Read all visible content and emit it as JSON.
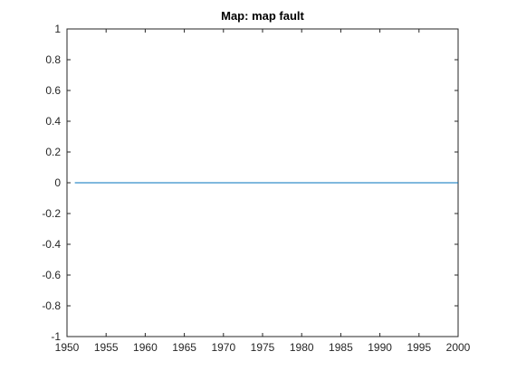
{
  "chart_data": {
    "type": "line",
    "title": "Map: map fault",
    "xlabel": "",
    "ylabel": "",
    "xlim": [
      1950,
      2000
    ],
    "ylim": [
      -1,
      1
    ],
    "x_ticks": [
      1950,
      1955,
      1960,
      1965,
      1970,
      1975,
      1980,
      1985,
      1990,
      1995,
      2000
    ],
    "y_ticks": [
      -1,
      -0.8,
      -0.6,
      -0.4,
      -0.2,
      0,
      0.2,
      0.4,
      0.6,
      0.8,
      1
    ],
    "grid": false,
    "series": [
      {
        "color": "#0072BD",
        "x": [
          1951,
          2000
        ],
        "y": [
          0,
          0
        ]
      }
    ]
  }
}
